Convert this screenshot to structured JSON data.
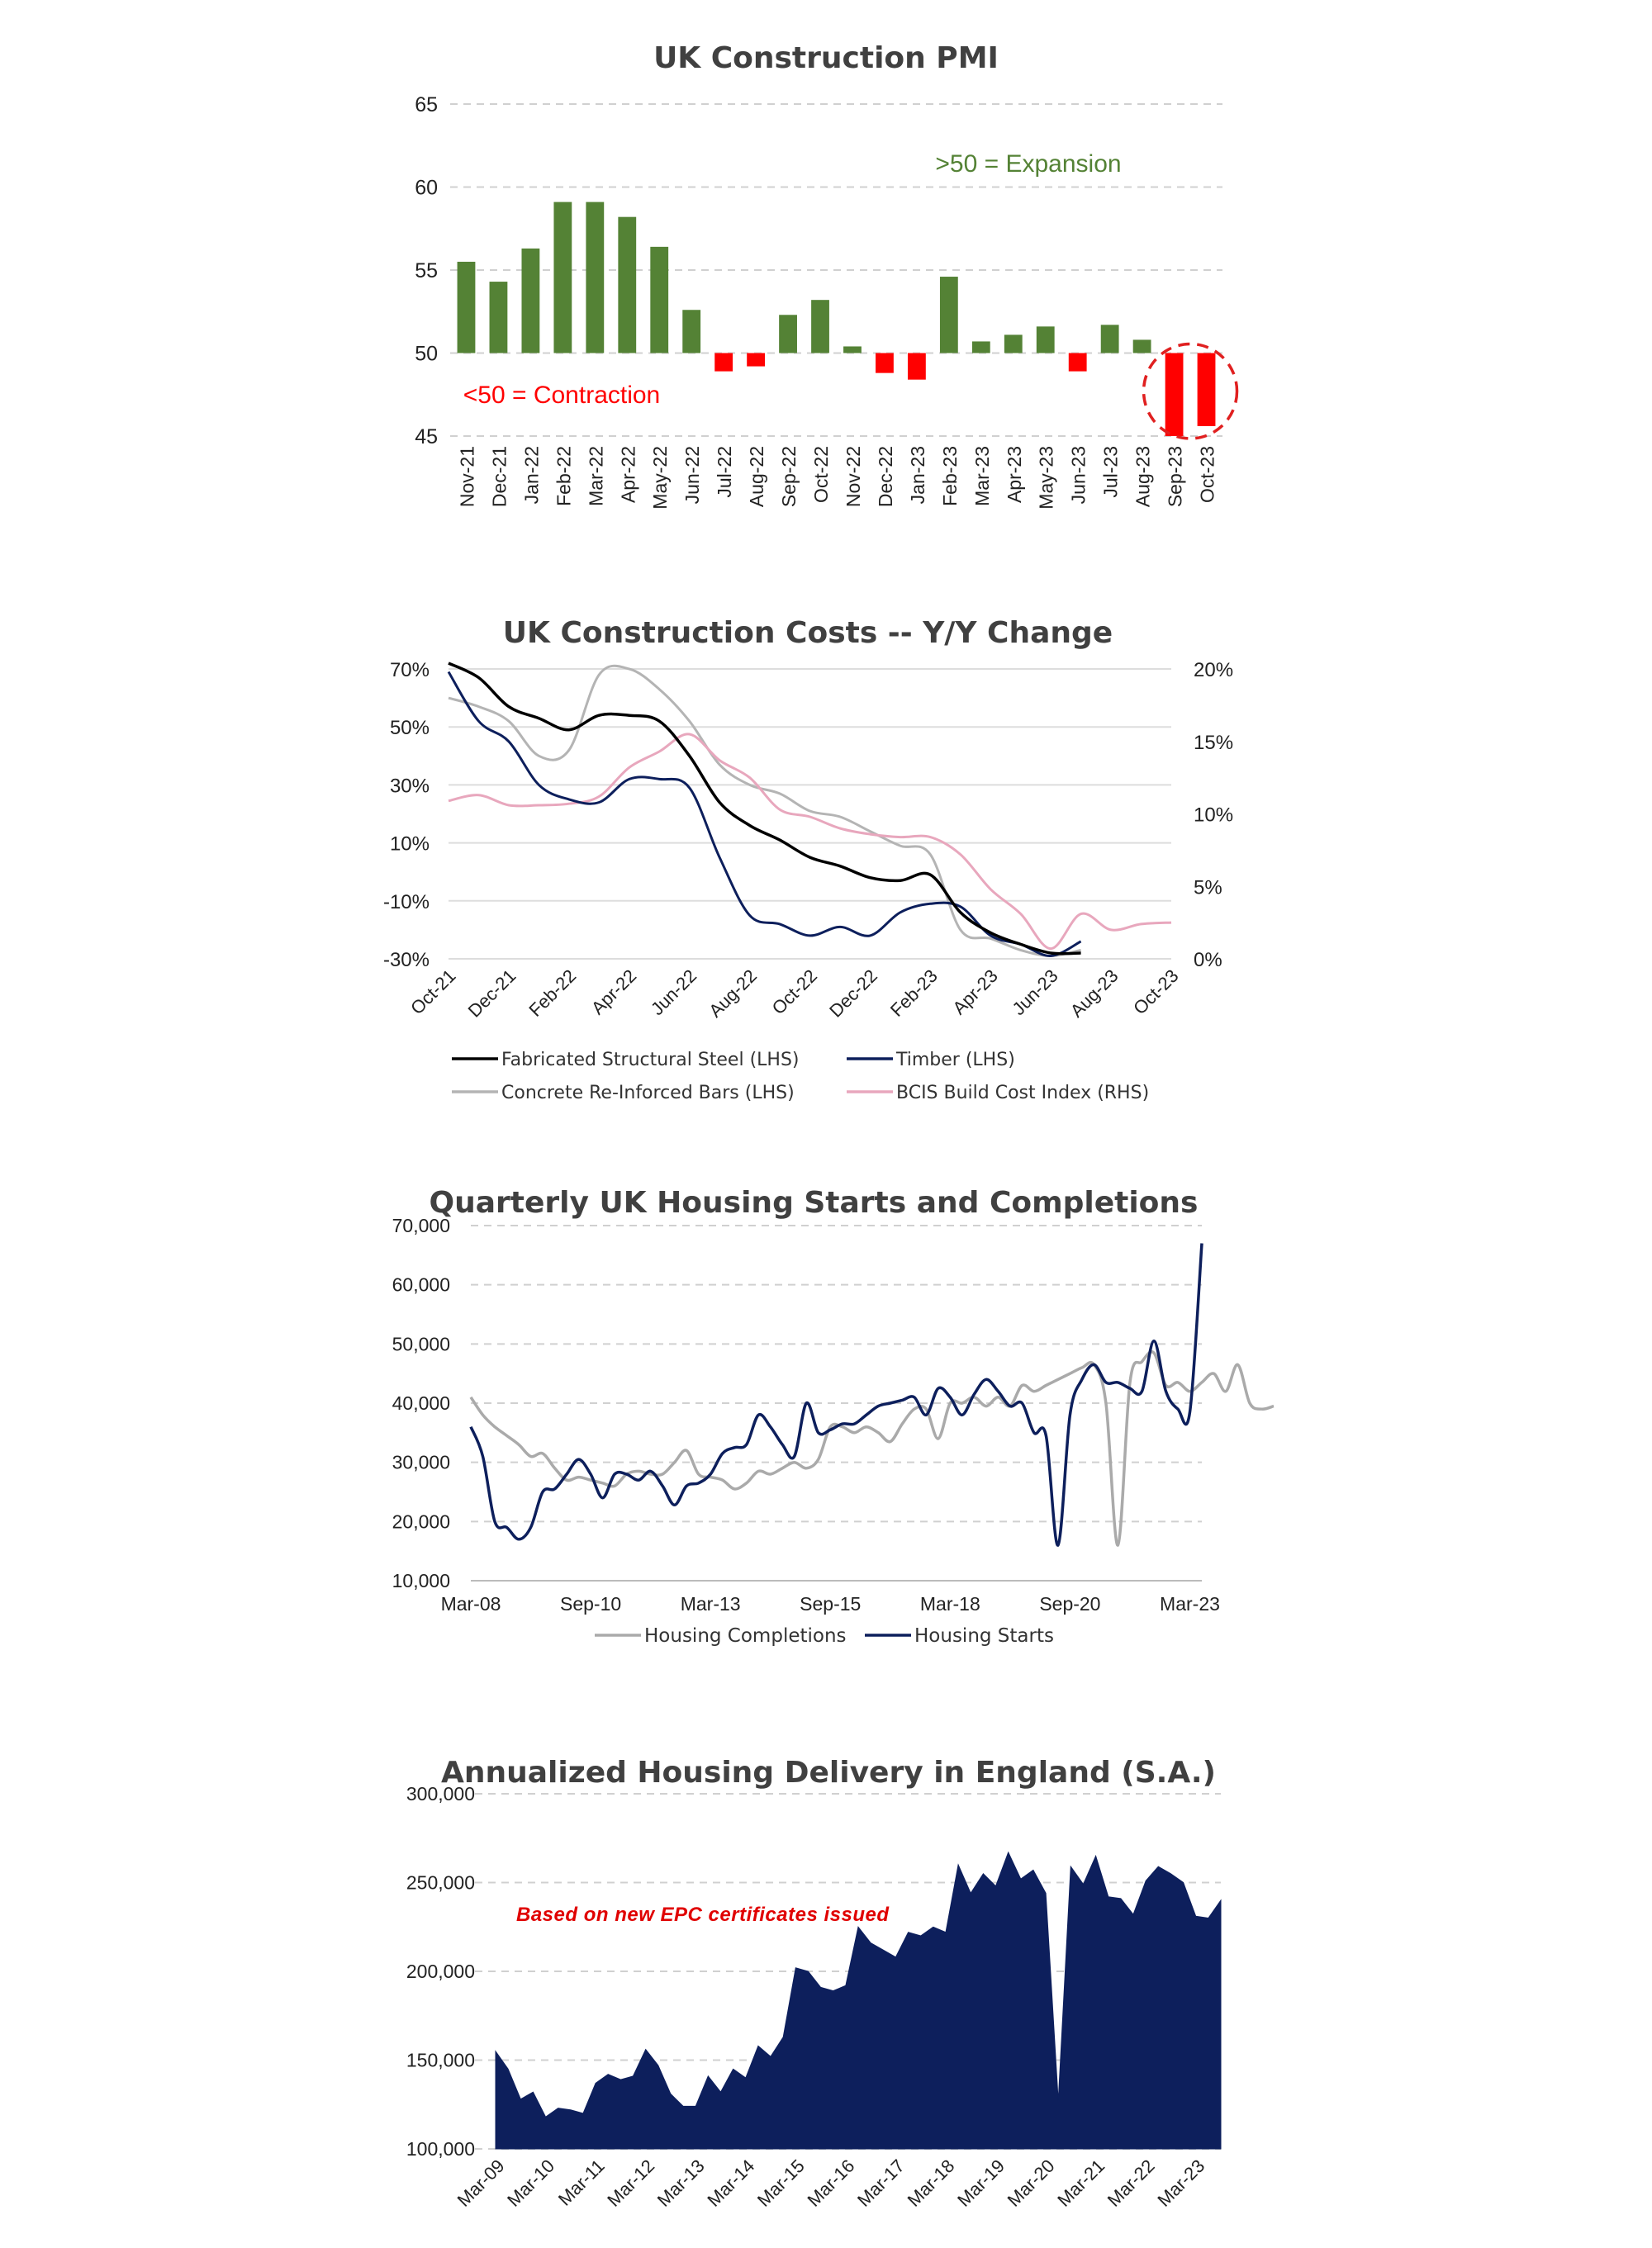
{
  "chart_data": [
    {
      "type": "bar",
      "title": "UK Construction PMI",
      "categories": [
        "Nov-21",
        "Dec-21",
        "Jan-22",
        "Feb-22",
        "Mar-22",
        "Apr-22",
        "May-22",
        "Jun-22",
        "Jul-22",
        "Aug-22",
        "Sep-22",
        "Oct-22",
        "Nov-22",
        "Dec-22",
        "Jan-23",
        "Feb-23",
        "Mar-23",
        "Apr-23",
        "May-23",
        "Jun-23",
        "Jul-23",
        "Aug-23",
        "Sep-23",
        "Oct-23"
      ],
      "values": [
        55.5,
        54.3,
        56.3,
        59.1,
        59.1,
        58.2,
        56.4,
        52.6,
        48.9,
        49.2,
        52.3,
        53.2,
        50.4,
        48.8,
        48.4,
        54.6,
        50.7,
        51.1,
        51.6,
        48.9,
        51.7,
        50.8,
        45.0,
        45.6
      ],
      "ylim": [
        45,
        65
      ],
      "yticks": [
        45,
        50,
        55,
        60,
        65
      ],
      "baseline": 50,
      "colors": {
        "expansion": "#548235",
        "contraction": "#ff0000",
        "highlight": "#e02020"
      },
      "annotations": {
        "expansion": ">50 = Expansion",
        "contraction": "<50 = Contraction"
      },
      "highlighted": [
        "Sep-23",
        "Oct-23"
      ],
      "grid": true
    },
    {
      "type": "line",
      "title": "UK Construction Costs -- Y/Y Change",
      "x_ticks": [
        "Oct-21",
        "Dec-21",
        "Feb-22",
        "Apr-22",
        "Jun-22",
        "Aug-22",
        "Oct-22",
        "Dec-22",
        "Feb-23",
        "Apr-23",
        "Jun-23",
        "Aug-23",
        "Oct-23"
      ],
      "x_months_from": "Oct-21",
      "ylim_left": [
        -30,
        70
      ],
      "yticks_left": [
        "-30%",
        "-10%",
        "10%",
        "30%",
        "50%",
        "70%"
      ],
      "ylim_right": [
        0,
        20
      ],
      "yticks_right": [
        "0%",
        "5%",
        "10%",
        "15%",
        "20%"
      ],
      "series": [
        {
          "name": "Fabricated Structural Steel (LHS)",
          "axis": "left",
          "color": "#000000",
          "x": [
            "Oct-21",
            "Nov-21",
            "Dec-21",
            "Jan-22",
            "Feb-22",
            "Mar-22",
            "Apr-22",
            "May-22",
            "Jun-22",
            "Jul-22",
            "Aug-22",
            "Sep-22",
            "Oct-22",
            "Nov-22",
            "Dec-22",
            "Jan-23",
            "Feb-23",
            "Mar-23",
            "Apr-23",
            "May-23",
            "Jun-23",
            "Jul-23"
          ],
          "values": [
            72,
            67,
            57,
            53,
            49,
            54,
            54,
            52,
            40,
            24,
            16,
            11,
            5,
            2,
            -2,
            -3,
            -1,
            -14,
            -21,
            -25,
            -28,
            -28
          ]
        },
        {
          "name": "Timber (LHS)",
          "axis": "left",
          "color": "#0d1f5c",
          "x": [
            "Oct-21",
            "Nov-21",
            "Dec-21",
            "Jan-22",
            "Feb-22",
            "Mar-22",
            "Apr-22",
            "May-22",
            "Jun-22",
            "Jul-22",
            "Aug-22",
            "Sep-22",
            "Oct-22",
            "Nov-22",
            "Dec-22",
            "Jan-23",
            "Feb-23",
            "Mar-23",
            "Apr-23",
            "May-23",
            "Jun-23",
            "Jul-23"
          ],
          "values": [
            69,
            52,
            45,
            30,
            25,
            24,
            32,
            32,
            29,
            5,
            -15,
            -18,
            -22,
            -19,
            -22,
            -14,
            -11,
            -12,
            -22,
            -25,
            -29,
            -24
          ]
        },
        {
          "name": "Concrete Re-Inforced Bars (LHS)",
          "axis": "left",
          "color": "#b4b4b4",
          "x": [
            "Oct-21",
            "Nov-21",
            "Dec-21",
            "Jan-22",
            "Feb-22",
            "Mar-22",
            "Apr-22",
            "May-22",
            "Jun-22",
            "Jul-22",
            "Aug-22",
            "Sep-22",
            "Oct-22",
            "Nov-22",
            "Dec-22",
            "Jan-23",
            "Feb-23",
            "Mar-23",
            "Apr-23",
            "May-23",
            "Jun-23",
            "Jul-23"
          ],
          "values": [
            60,
            57,
            52,
            40,
            42,
            68,
            70,
            63,
            52,
            37,
            30,
            27,
            21,
            19,
            14,
            9,
            6,
            -20,
            -23,
            -27,
            -29,
            -27
          ]
        },
        {
          "name": "BCIS Build Cost Index (RHS)",
          "axis": "right",
          "color": "#e8a7bd",
          "x": [
            "Oct-21",
            "Nov-21",
            "Dec-21",
            "Jan-22",
            "Feb-22",
            "Mar-22",
            "Apr-22",
            "May-22",
            "Jun-22",
            "Jul-22",
            "Aug-22",
            "Sep-22",
            "Oct-22",
            "Nov-22",
            "Dec-22",
            "Jan-23",
            "Feb-23",
            "Mar-23",
            "Apr-23",
            "May-23",
            "Jun-23",
            "Jul-23",
            "Aug-23",
            "Sep-23",
            "Oct-23"
          ],
          "values": [
            10.9,
            11.3,
            10.6,
            10.6,
            10.7,
            11.2,
            13.2,
            14.3,
            15.5,
            13.7,
            12.5,
            10.3,
            9.8,
            9.0,
            8.6,
            8.4,
            8.4,
            7.2,
            4.8,
            3.1,
            0.7,
            3.1,
            2.0,
            2.4,
            2.5
          ]
        }
      ],
      "legend": "bottom",
      "grid": true
    },
    {
      "type": "line",
      "title": "Quarterly UK Housing Starts and Completions",
      "x_start": 2008.25,
      "x_end": 2023.5,
      "x_ticks": [
        "Mar-08",
        "Sep-10",
        "Mar-13",
        "Sep-15",
        "Mar-18",
        "Sep-20",
        "Mar-23"
      ],
      "x_tick_positions": [
        2008.25,
        2010.75,
        2013.25,
        2015.75,
        2018.25,
        2020.75,
        2023.25
      ],
      "ylim": [
        10000,
        70000
      ],
      "yticks": [
        "10,000",
        "20,000",
        "30,000",
        "40,000",
        "50,000",
        "60,000",
        "70,000"
      ],
      "series": [
        {
          "name": "Housing Completions",
          "color": "#aaaaaa",
          "values": [
            41000,
            38000,
            36000,
            34500,
            33000,
            31000,
            31500,
            29000,
            27000,
            27500,
            27000,
            26500,
            26000,
            28000,
            28500,
            28000,
            28000,
            30000,
            32000,
            28000,
            27500,
            27000,
            25500,
            26500,
            28500,
            28000,
            29000,
            30000,
            29000,
            30500,
            36000,
            36000,
            35000,
            36000,
            35000,
            33500,
            36500,
            39000,
            39000,
            34000,
            40000,
            40000,
            41000,
            39500,
            41000,
            39500,
            43000,
            42000,
            43000,
            44000,
            45000,
            46000,
            46500,
            40000,
            16000,
            43500,
            47000,
            48500,
            43000,
            43500,
            42000,
            43500,
            45000,
            42000,
            46500,
            40000,
            39000,
            39500
          ],
          "x_start_repeat": 0.25
        },
        {
          "name": "Housing Starts",
          "color": "#0d1f5c",
          "values": [
            36000,
            31000,
            20000,
            19000,
            17000,
            19000,
            25000,
            25500,
            28000,
            30500,
            28000,
            24000,
            28000,
            28000,
            27000,
            28500,
            26000,
            22800,
            26000,
            26500,
            28000,
            31500,
            32500,
            33000,
            38000,
            36000,
            33000,
            31000,
            40000,
            35000,
            35500,
            36500,
            36500,
            38000,
            39500,
            40000,
            40500,
            41000,
            38000,
            42500,
            41000,
            38000,
            41500,
            44000,
            42000,
            39500,
            40000,
            35000,
            34500,
            16000,
            38000,
            44000,
            46500,
            43500,
            43500,
            42500,
            42000,
            50500,
            42000,
            39000,
            38500,
            67000
          ],
          "x_start_repeat": 0.25
        }
      ],
      "legend": "bottom",
      "grid": true
    },
    {
      "type": "area",
      "title": "Annualized Housing Delivery in England (S.A.)",
      "x_start": "Mar-09",
      "x_ticks": [
        "Mar-09",
        "Mar-10",
        "Mar-11",
        "Mar-12",
        "Mar-13",
        "Mar-14",
        "Mar-15",
        "Mar-16",
        "Mar-17",
        "Mar-18",
        "Mar-19",
        "Mar-20",
        "Mar-21",
        "Mar-22",
        "Mar-23"
      ],
      "ylim": [
        100000,
        300000
      ],
      "yticks": [
        "100,000",
        "150,000",
        "200,000",
        "250,000",
        "300,000"
      ],
      "series": [
        {
          "name": "",
          "color": "#0d1f5c",
          "values": [
            155000,
            145000,
            128000,
            132000,
            118000,
            123000,
            122000,
            120000,
            137000,
            142000,
            139000,
            141000,
            156000,
            147000,
            131000,
            124000,
            124000,
            141000,
            132000,
            145000,
            140000,
            158000,
            152000,
            163000,
            202000,
            200000,
            191000,
            189000,
            192000,
            225000,
            216000,
            212000,
            208000,
            222000,
            220000,
            225000,
            222000,
            260000,
            244000,
            255000,
            248000,
            267000,
            252000,
            257000,
            244000,
            127000,
            259000,
            249000,
            265000,
            242000,
            241000,
            232000,
            251000,
            259000,
            255000,
            250000,
            231000,
            230000,
            240000
          ]
        }
      ],
      "annotations": {
        "note": "Based on new EPC certificates issued"
      },
      "grid": true
    }
  ]
}
